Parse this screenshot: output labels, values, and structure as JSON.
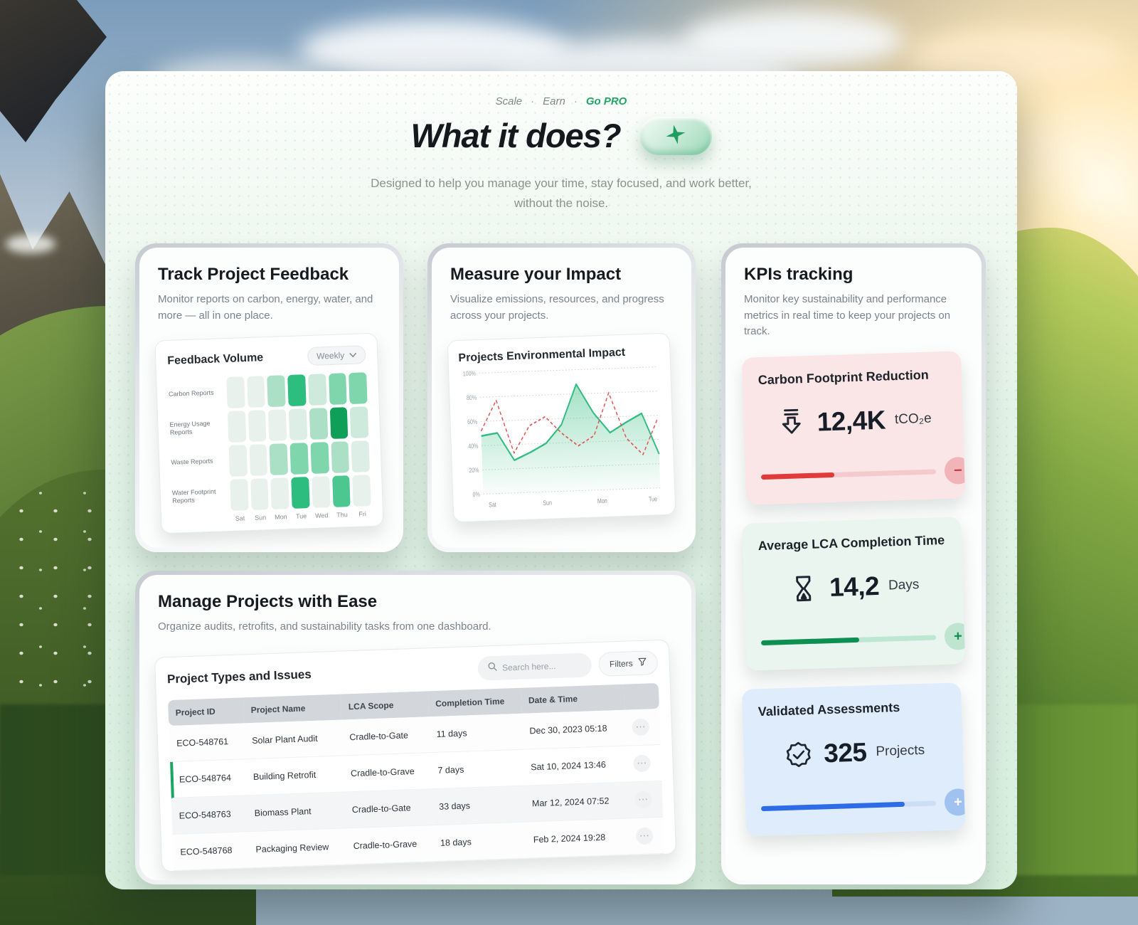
{
  "nav": {
    "items": [
      "Scale",
      "Earn",
      "Go PRO"
    ],
    "separator": "·"
  },
  "hero": {
    "title": "What it does?",
    "subtitle": "Designed to help you manage your time, stay focused, and work better, without the noise."
  },
  "colors": {
    "accent_green": "#21a565",
    "heatmap_dark_green": "#0f9f58",
    "red_accent": "#e03a3a",
    "blue_accent": "#2e6be6"
  },
  "cards": {
    "feedback": {
      "title": "Track Project Feedback",
      "description": "Monitor reports on carbon, energy, water, and more — all in one place.",
      "panel_title": "Feedback Volume",
      "range_selector": "Weekly"
    },
    "impact": {
      "title": "Measure your Impact",
      "description": "Visualize emissions, resources, and progress across your projects.",
      "panel_title": "Projects Environmental Impact"
    },
    "kpis": {
      "title": "KPIs tracking",
      "description": "Monitor key sustainability and performance metrics in real time to keep your projects on track.",
      "tiles": [
        {
          "title": "Carbon Footprint Reduction",
          "icon": "carbon-reduction-arrow-icon",
          "value": "12,4K",
          "unit": "tCO₂e",
          "progress_pct": 42,
          "bg": "#fae6e6",
          "accent": "#e03a3a",
          "track": "#f3cbce",
          "button_symbol": "−",
          "button_bg": "#f0b4b9",
          "button_fg": "#c23a3a"
        },
        {
          "title": "Average LCA Completion Time",
          "icon": "hourglass-icon",
          "value": "14,2",
          "unit": "Days",
          "progress_pct": 56,
          "bg": "#e9f5ee",
          "accent": "#0e8f52",
          "track": "#bde7d0",
          "button_symbol": "+",
          "button_bg": "#bfe5d0",
          "button_fg": "#0e8f52"
        },
        {
          "title": "Validated Assessments",
          "icon": "badge-check-icon",
          "value": "325",
          "unit": "Projects",
          "progress_pct": 82,
          "bg": "#dfecfc",
          "accent": "#2e6be6",
          "track": "#cdddf5",
          "button_symbol": "+",
          "button_bg": "#9fc2f0",
          "button_fg": "#ffffff"
        }
      ]
    },
    "manage": {
      "title": "Manage Projects with Ease",
      "description": "Organize audits, retrofits, and sustainability tasks from one dashboard.",
      "panel_title": "Project Types and Issues",
      "search_placeholder": "Search here...",
      "filters_label": "Filters"
    }
  },
  "table": {
    "columns": [
      "Project ID",
      "Project Name",
      "LCA Scope",
      "Completion Time",
      "Date & Time"
    ],
    "rows": [
      {
        "id": "ECO-548761",
        "name": "Solar Plant Audit",
        "scope": "Cradle-to-Gate",
        "time": "11 days",
        "date": "Dec 30, 2023 05:18",
        "selected": false
      },
      {
        "id": "ECO-548764",
        "name": "Building Retrofit",
        "scope": "Cradle-to-Grave",
        "time": "7 days",
        "date": "Sat 10, 2024 13:46",
        "selected": true
      },
      {
        "id": "ECO-548763",
        "name": "Biomass Plant",
        "scope": "Cradle-to-Gate",
        "time": "33 days",
        "date": "Mar 12, 2024 07:52",
        "selected": false
      },
      {
        "id": "ECO-548768",
        "name": "Packaging Review",
        "scope": "Cradle-to-Grave",
        "time": "18 days",
        "date": "Feb 2, 2024 19:28",
        "selected": false
      }
    ]
  },
  "chart_data": [
    {
      "type": "heatmap",
      "title": "Feedback Volume",
      "rows": [
        "Carbon Reports",
        "Energy Usage Reports",
        "Waste Reports",
        "Water Footprint Reports"
      ],
      "columns": [
        "Sat",
        "Sun",
        "Mon",
        "Tue",
        "Wed",
        "Thu",
        "Fri"
      ],
      "values": [
        [
          0,
          0,
          1.5,
          3,
          1,
          2,
          2
        ],
        [
          0,
          0,
          0,
          0.5,
          1.5,
          4,
          1
        ],
        [
          0,
          0,
          1.5,
          2,
          2,
          1.5,
          0.5
        ],
        [
          0,
          0,
          0,
          3,
          0,
          2.5,
          0
        ]
      ],
      "value_note": "relative report volume, 0 (low) to 4 (high)",
      "palette": {
        "0": "#e9f1ed",
        "0.5": "#ddeee6",
        "1": "#cdeadd",
        "1.5": "#abe0c6",
        "2": "#7fd5ac",
        "2.5": "#4cc78f",
        "3": "#2dbd7e",
        "4": "#0f9f58"
      }
    },
    {
      "type": "area",
      "title": "Projects Environmental Impact",
      "x_labels": [
        "Sat",
        "Sun",
        "Mon",
        "Tue"
      ],
      "y_ticks": [
        "0%",
        "20%",
        "40%",
        "60%",
        "80%",
        "100%"
      ],
      "ylim": [
        0,
        100
      ],
      "grid": "dotted horizontal",
      "legend": "none",
      "series": [
        {
          "name": "green-area",
          "color": "#35bc82",
          "style": "solid-area",
          "values": [
            48,
            50,
            27,
            33,
            40,
            55,
            88,
            64,
            47,
            55,
            62,
            28
          ]
        },
        {
          "name": "red-dashed",
          "color": "#e05555",
          "style": "dashed-line",
          "values": [
            52,
            77,
            33,
            55,
            62,
            48,
            37,
            45,
            80,
            42,
            28,
            58
          ]
        }
      ]
    }
  ]
}
